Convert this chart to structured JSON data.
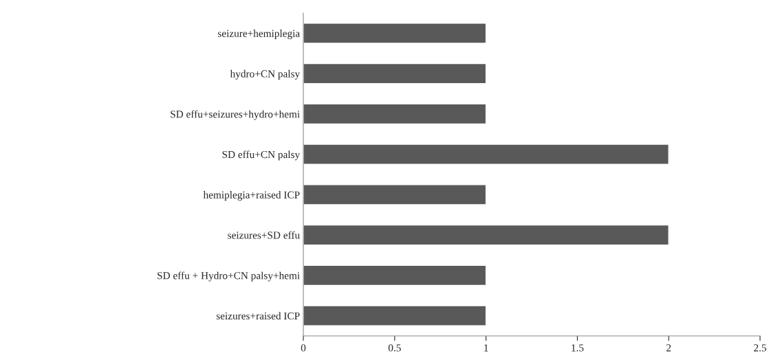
{
  "chart_data": {
    "type": "bar",
    "orientation": "horizontal",
    "categories": [
      "seizure+hemiplegia",
      "hydro+CN palsy",
      "SD effu+seizures+hydro+hemi",
      "SD effu+CN palsy",
      "hemiplegia+raised ICP",
      "seizures+SD effu",
      "SD effu + Hydro+CN palsy+hemi",
      "seizures+raised ICP"
    ],
    "values": [
      1,
      1,
      1,
      2,
      1,
      2,
      1,
      1
    ],
    "color": "#595959",
    "xlim": [
      0,
      2.5
    ],
    "xticks": [
      0,
      0.5,
      1,
      1.5,
      2,
      2.5
    ],
    "grid": false
  }
}
